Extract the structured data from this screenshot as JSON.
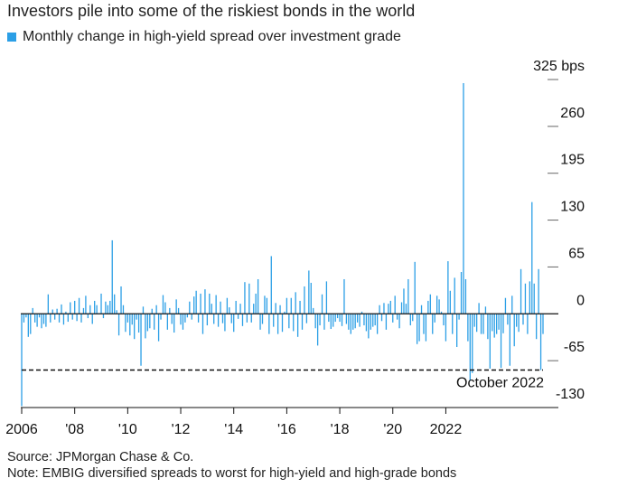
{
  "title": "Investors pile into some of the riskiest bonds in the world",
  "legend": {
    "label": "Monthly change in high-yield spread over investment grade",
    "color": "#2b9fe6"
  },
  "footer": {
    "source": "Source: JPMorgan Chase & Co.",
    "note": "Note: EMBIG diversified spreads to worst for high-yield and high-grade bonds"
  },
  "chart_data": {
    "type": "bar",
    "title": "Investors pile into some of the riskiest bonds in the world",
    "series_name": "Monthly change in high-yield spread over investment grade",
    "bar_color": "#2b9fe6",
    "ylim": [
      -130,
      325
    ],
    "yticks": [
      {
        "value": 325,
        "label": "325 bps"
      },
      {
        "value": 260,
        "label": "260"
      },
      {
        "value": 195,
        "label": "195"
      },
      {
        "value": 130,
        "label": "130"
      },
      {
        "value": 65,
        "label": "65"
      },
      {
        "value": 0,
        "label": "0"
      },
      {
        "value": -65,
        "label": "-65"
      },
      {
        "value": -130,
        "label": "-130"
      }
    ],
    "x_start": "2006-01",
    "xticks": [
      {
        "year": 2006,
        "label": "2006"
      },
      {
        "year": 2008,
        "label": "'08"
      },
      {
        "year": 2010,
        "label": "'10"
      },
      {
        "year": 2012,
        "label": "'12"
      },
      {
        "year": 2014,
        "label": "'14"
      },
      {
        "year": 2016,
        "label": "'16"
      },
      {
        "year": 2018,
        "label": "'18"
      },
      {
        "year": 2020,
        "label": "'20"
      },
      {
        "year": 2022,
        "label": "2022"
      }
    ],
    "reference_line": {
      "value": -78,
      "label": "October 2022",
      "style": "dashed"
    },
    "values": [
      -128,
      -12,
      -5,
      -32,
      -28,
      8,
      -12,
      -18,
      -5,
      -20,
      -14,
      -18,
      27,
      -12,
      6,
      -8,
      7,
      -12,
      13,
      -15,
      3,
      -11,
      16,
      -8,
      18,
      -10,
      22,
      -12,
      8,
      25,
      -6,
      12,
      -14,
      18,
      12,
      1,
      28,
      -6,
      17,
      12,
      18,
      102,
      27,
      5,
      -30,
      38,
      12,
      -25,
      -12,
      -30,
      -15,
      -35,
      -8,
      -26,
      -72,
      10,
      -34,
      -24,
      -20,
      7,
      -22,
      12,
      -38,
      -8,
      26,
      16,
      -22,
      8,
      -14,
      -26,
      20,
      8,
      -15,
      -22,
      -12,
      -5,
      17,
      -8,
      24,
      32,
      -12,
      28,
      -28,
      34,
      -16,
      28,
      14,
      -14,
      26,
      -18,
      17,
      -13,
      -24,
      22,
      9,
      -13,
      -25,
      18,
      -7,
      14,
      -17,
      44,
      -12,
      42,
      -12,
      14,
      28,
      48,
      -22,
      -14,
      25,
      22,
      -28,
      80,
      -18,
      15,
      -28,
      12,
      -25,
      3,
      22,
      -20,
      22,
      -24,
      30,
      -32,
      18,
      -22,
      38,
      -13,
      60,
      43,
      8,
      -20,
      -44,
      -16,
      27,
      -22,
      45,
      -11,
      -21,
      -18,
      -11,
      -6,
      -11,
      -17,
      48,
      -14,
      -22,
      -28,
      -22,
      -20,
      -12,
      -18,
      3,
      -16,
      -24,
      -34,
      -22,
      -18,
      -16,
      -28,
      12,
      -10,
      15,
      -22,
      14,
      18,
      -12,
      25,
      -8,
      -20,
      16,
      35,
      14,
      48,
      -16,
      -10,
      72,
      -42,
      -38,
      12,
      -28,
      -38,
      18,
      27,
      -28,
      -12,
      25,
      20,
      3,
      -16,
      -38,
      73,
      32,
      -28,
      50,
      -46,
      -8,
      58,
      320,
      48,
      -38,
      -93,
      -82,
      -18,
      -25,
      15,
      -28,
      -28,
      10,
      -35,
      -76,
      -24,
      -33,
      -28,
      -22,
      -75,
      -27,
      22,
      -15,
      -72,
      25,
      -45,
      -18,
      -25,
      62,
      -15,
      42,
      -28,
      45,
      155,
      42,
      -35,
      62,
      -78,
      -28
    ]
  }
}
